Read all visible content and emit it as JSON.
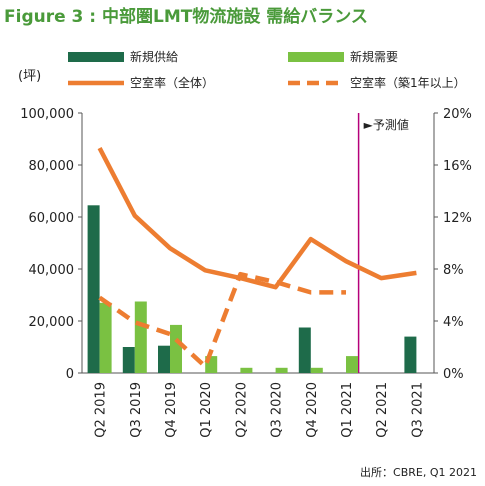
{
  "figure_title": "Figure 3 : 中部圏LMT物流施設 需給バランス",
  "source": "出所：CBRE, Q1 2021",
  "colors": {
    "title": "#4a9a3a",
    "new_supply": "#1e6b4a",
    "new_demand": "#7ac142",
    "vacancy_all": "#ed7d31",
    "vacancy_new": "#ed7d31",
    "forecast_line": "#b5007a"
  },
  "chart_data": {
    "type": "bar",
    "y_unit_label": "(坪)",
    "categories": [
      "Q2 2019",
      "Q3 2019",
      "Q4 2019",
      "Q1 2020",
      "Q2 2020",
      "Q3 2020",
      "Q4 2020",
      "Q1 2021",
      "Q2 2021",
      "Q3 2021"
    ],
    "ylim_left": [
      0,
      100000
    ],
    "yticks_left": [
      "0",
      "20,000",
      "40,000",
      "60,000",
      "80,000",
      "100,000"
    ],
    "ylim_right": [
      0,
      20
    ],
    "yticks_right": [
      "0%",
      "4%",
      "8%",
      "12%",
      "16%",
      "20%"
    ],
    "forecast_label": "►予測値",
    "forecast_start_index": 8,
    "series": [
      {
        "name": "新規供給",
        "kind": "bar",
        "axis": "left",
        "values": [
          64500,
          10000,
          10500,
          0,
          0,
          0,
          17500,
          0,
          0,
          14000
        ]
      },
      {
        "name": "新規需要",
        "kind": "bar",
        "axis": "left",
        "values": [
          27000,
          27500,
          18500,
          6500,
          2000,
          2000,
          2000,
          6500,
          0,
          0
        ]
      },
      {
        "name": "空室率（全体）",
        "kind": "line",
        "axis": "right",
        "style": "solid",
        "values": [
          17.3,
          12.1,
          9.6,
          7.9,
          7.3,
          6.6,
          10.3,
          8.6,
          7.3,
          7.7
        ]
      },
      {
        "name": "空室率（築1年以上）",
        "kind": "line",
        "axis": "right",
        "style": "dashed",
        "values": [
          5.8,
          3.9,
          3.0,
          0.5,
          7.6,
          7.0,
          6.2,
          6.2,
          null,
          null
        ]
      }
    ]
  }
}
